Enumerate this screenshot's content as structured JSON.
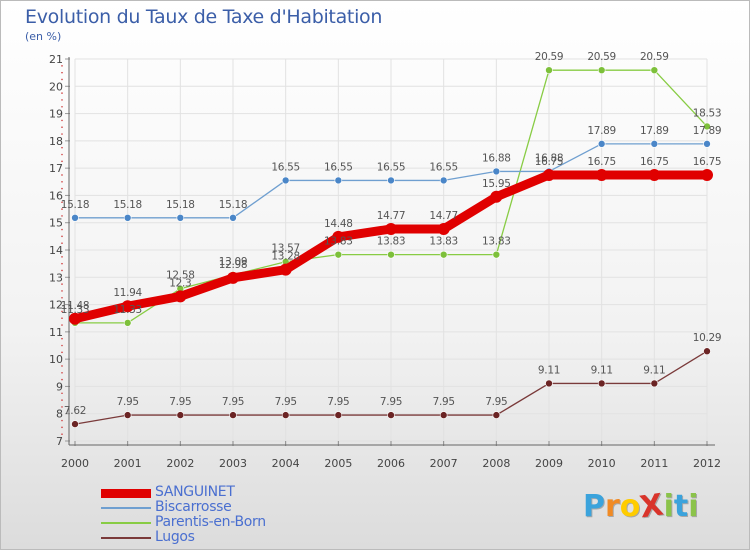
{
  "header": {
    "title": "Evolution du Taux de Taxe d'Habitation",
    "unit": "(en %)"
  },
  "chart_data": {
    "type": "line",
    "title": "Evolution du Taux de Taxe d'Habitation",
    "ylabel": "(en %)",
    "xlabel": "",
    "x": [
      "2000",
      "2001",
      "2002",
      "2003",
      "2004",
      "2005",
      "2006",
      "2007",
      "2008",
      "2009",
      "2010",
      "2011",
      "2012"
    ],
    "ylim": [
      7,
      21
    ],
    "yticks": [
      7,
      8,
      9,
      10,
      11,
      12,
      13,
      14,
      15,
      16,
      17,
      18,
      19,
      20,
      21
    ],
    "grid": true,
    "legend_position": "bottom-left",
    "series": [
      {
        "name": "SANGUINET",
        "color": "#e00000",
        "values": [
          11.48,
          11.94,
          12.3,
          12.98,
          13.28,
          14.48,
          14.77,
          14.77,
          15.95,
          16.75,
          16.75,
          16.75,
          16.75
        ]
      },
      {
        "name": "Biscarrosse",
        "color": "#6f9fd0",
        "values": [
          15.18,
          15.18,
          15.18,
          15.18,
          16.55,
          16.55,
          16.55,
          16.55,
          16.88,
          16.88,
          17.89,
          17.89,
          17.89
        ]
      },
      {
        "name": "Parentis-en-Born",
        "color": "#88cc44",
        "values": [
          11.33,
          11.33,
          12.58,
          13.09,
          13.57,
          13.83,
          13.83,
          13.83,
          13.83,
          20.59,
          20.59,
          20.59,
          18.53
        ]
      },
      {
        "name": "Lugos",
        "color": "#7a3a3a",
        "values": [
          7.62,
          7.95,
          7.95,
          7.95,
          7.95,
          7.95,
          7.95,
          7.95,
          7.95,
          9.11,
          9.11,
          9.11,
          10.29
        ]
      }
    ]
  },
  "logo": {
    "text": "ProXiti",
    "letters": [
      "P",
      "r",
      "o",
      "X",
      "i",
      "t",
      "i"
    ],
    "colors": [
      "#3ba3dc",
      "#f08a24",
      "#ffcc00",
      "#d9342b",
      "#8bc34a",
      "#3ba3dc",
      "#8bc34a"
    ]
  }
}
